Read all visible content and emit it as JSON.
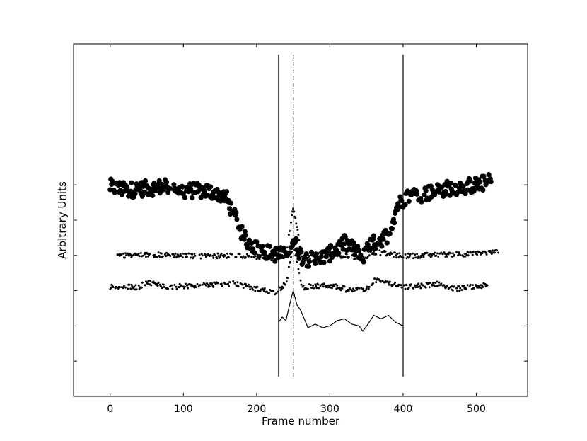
{
  "chart_data": {
    "type": "scatter",
    "xlabel": "Frame number",
    "ylabel": "Arbitrary Units",
    "xlim": [
      -50,
      570
    ],
    "ylim": [
      0,
      10
    ],
    "x_ticks": [
      0,
      100,
      200,
      300,
      400,
      500
    ],
    "y_tick_values": [
      1,
      2,
      3,
      4,
      5,
      6
    ],
    "y_tick_labels_shown": false,
    "grid": false,
    "vertical_lines": [
      {
        "x": 230,
        "style": "solid"
      },
      {
        "x": 250,
        "style": "dashed"
      },
      {
        "x": 400,
        "style": "solid"
      }
    ],
    "series": [
      {
        "style": "large-dots",
        "x_range": [
          0,
          520
        ],
        "profile": [
          [
            0,
            5.95
          ],
          [
            20,
            5.85
          ],
          [
            50,
            5.9
          ],
          [
            80,
            5.95
          ],
          [
            100,
            5.85
          ],
          [
            140,
            5.8
          ],
          [
            158,
            5.65
          ],
          [
            172,
            5.0
          ],
          [
            182,
            4.5
          ],
          [
            200,
            4.2
          ],
          [
            220,
            4.05
          ],
          [
            240,
            4.0
          ],
          [
            250,
            4.45
          ],
          [
            262,
            3.95
          ],
          [
            280,
            3.85
          ],
          [
            300,
            4.05
          ],
          [
            320,
            4.35
          ],
          [
            335,
            4.15
          ],
          [
            345,
            3.9
          ],
          [
            355,
            4.3
          ],
          [
            370,
            4.45
          ],
          [
            380,
            4.6
          ],
          [
            392,
            5.4
          ],
          [
            405,
            5.7
          ],
          [
            430,
            5.75
          ],
          [
            460,
            5.9
          ],
          [
            500,
            6.0
          ],
          [
            520,
            6.1
          ]
        ]
      },
      {
        "style": "small-dots",
        "x_range": [
          10,
          530
        ],
        "profile": [
          [
            10,
            4.0
          ],
          [
            60,
            4.02
          ],
          [
            120,
            3.98
          ],
          [
            180,
            4.0
          ],
          [
            225,
            3.9
          ],
          [
            240,
            4.0
          ],
          [
            250,
            5.4
          ],
          [
            262,
            3.95
          ],
          [
            300,
            4.05
          ],
          [
            330,
            3.95
          ],
          [
            345,
            3.9
          ],
          [
            360,
            4.1
          ],
          [
            400,
            3.98
          ],
          [
            450,
            4.02
          ],
          [
            500,
            4.05
          ],
          [
            530,
            4.1
          ]
        ]
      },
      {
        "style": "small-dots",
        "x_range": [
          0,
          515
        ],
        "profile": [
          [
            0,
            3.1
          ],
          [
            40,
            3.1
          ],
          [
            50,
            3.25
          ],
          [
            80,
            3.1
          ],
          [
            120,
            3.15
          ],
          [
            170,
            3.2
          ],
          [
            200,
            3.05
          ],
          [
            225,
            2.95
          ],
          [
            240,
            3.2
          ],
          [
            250,
            4.3
          ],
          [
            262,
            3.1
          ],
          [
            300,
            3.15
          ],
          [
            330,
            3.0
          ],
          [
            350,
            3.05
          ],
          [
            362,
            3.3
          ],
          [
            400,
            3.1
          ],
          [
            430,
            3.15
          ],
          [
            450,
            3.2
          ],
          [
            470,
            3.05
          ],
          [
            515,
            3.15
          ]
        ]
      },
      {
        "style": "line",
        "points": [
          [
            230,
            2.1
          ],
          [
            235,
            2.25
          ],
          [
            240,
            2.15
          ],
          [
            245,
            2.6
          ],
          [
            250,
            3.0
          ],
          [
            255,
            2.6
          ],
          [
            260,
            2.45
          ],
          [
            265,
            2.2
          ],
          [
            270,
            1.95
          ],
          [
            280,
            2.05
          ],
          [
            290,
            1.95
          ],
          [
            300,
            2.0
          ],
          [
            310,
            2.15
          ],
          [
            320,
            2.2
          ],
          [
            330,
            2.05
          ],
          [
            340,
            2.0
          ],
          [
            345,
            1.85
          ],
          [
            352,
            2.05
          ],
          [
            360,
            2.3
          ],
          [
            370,
            2.2
          ],
          [
            380,
            2.3
          ],
          [
            390,
            2.1
          ],
          [
            400,
            2.0
          ]
        ]
      }
    ]
  }
}
